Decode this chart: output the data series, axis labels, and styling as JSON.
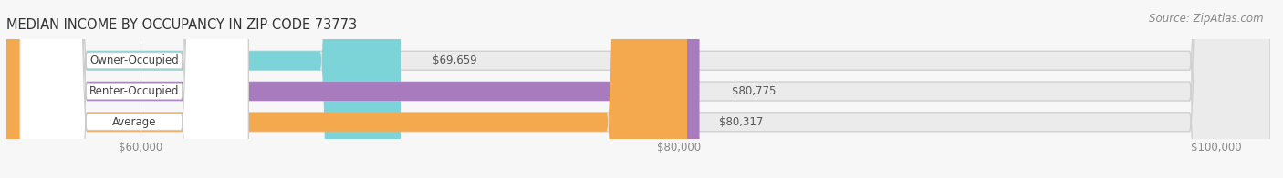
{
  "title": "MEDIAN INCOME BY OCCUPANCY IN ZIP CODE 73773",
  "source": "Source: ZipAtlas.com",
  "categories": [
    "Owner-Occupied",
    "Renter-Occupied",
    "Average"
  ],
  "values": [
    69659,
    80775,
    80317
  ],
  "labels": [
    "$69,659",
    "$80,775",
    "$80,317"
  ],
  "bar_colors": [
    "#7dd4d8",
    "#a87bbf",
    "#f5a94e"
  ],
  "bar_bg_color": "#e8e8e8",
  "xmin": 55000,
  "xmax": 102000,
  "xlim_left": 55000,
  "xlim_right": 102000,
  "xticks": [
    60000,
    80000,
    100000
  ],
  "xtick_labels": [
    "$60,000",
    "$80,000",
    "$100,000"
  ],
  "title_fontsize": 10.5,
  "source_fontsize": 8.5,
  "label_fontsize": 8.5,
  "value_fontsize": 8.5,
  "tick_fontsize": 8.5,
  "bar_height": 0.62,
  "background_color": "#f7f7f7",
  "label_bg_color": "#ffffff",
  "grid_color": "#dddddd",
  "bar_gap": 0.25
}
